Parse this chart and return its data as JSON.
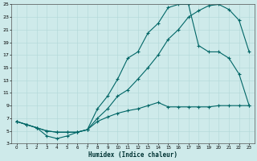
{
  "xlabel": "Humidex (Indice chaleur)",
  "ylabel": "",
  "bg_color": "#ceeaea",
  "line_color": "#006666",
  "grid_color": "#b0d8d8",
  "xlim": [
    -0.5,
    23.5
  ],
  "ylim": [
    3,
    25
  ],
  "xticks": [
    0,
    1,
    2,
    3,
    4,
    5,
    6,
    7,
    8,
    9,
    10,
    11,
    12,
    13,
    14,
    15,
    16,
    17,
    18,
    19,
    20,
    21,
    22,
    23
  ],
  "yticks": [
    3,
    5,
    7,
    9,
    11,
    13,
    15,
    17,
    19,
    21,
    23,
    25
  ],
  "curve1_x": [
    0,
    1,
    2,
    3,
    4,
    5,
    6,
    7,
    8,
    9,
    10,
    11,
    12,
    13,
    14,
    15,
    16,
    17,
    18,
    19,
    20,
    21,
    22,
    23
  ],
  "curve1_y": [
    6.5,
    6.0,
    5.5,
    4.2,
    3.8,
    4.2,
    4.8,
    5.2,
    8.5,
    10.5,
    13.2,
    16.5,
    17.5,
    20.5,
    22.0,
    24.5,
    25.0,
    25.0,
    18.5,
    17.5,
    17.5,
    16.5,
    14.0,
    9.0
  ],
  "curve2_x": [
    0,
    1,
    2,
    3,
    4,
    5,
    6,
    7,
    8,
    9,
    10,
    11,
    12,
    13,
    14,
    15,
    16,
    17,
    18,
    19,
    20,
    21,
    22,
    23
  ],
  "curve2_y": [
    6.5,
    6.0,
    5.5,
    5.0,
    4.8,
    4.8,
    4.8,
    5.2,
    7.0,
    8.5,
    10.5,
    11.5,
    13.2,
    15.0,
    17.0,
    19.5,
    21.0,
    23.0,
    24.0,
    24.8,
    25.0,
    24.2,
    22.5,
    17.5
  ],
  "curve3_x": [
    0,
    1,
    2,
    3,
    4,
    5,
    6,
    7,
    8,
    9,
    10,
    11,
    12,
    13,
    14,
    15,
    16,
    17,
    18,
    19,
    20,
    21,
    22,
    23
  ],
  "curve3_y": [
    6.5,
    6.0,
    5.5,
    5.0,
    4.8,
    4.8,
    4.8,
    5.2,
    6.5,
    7.2,
    7.8,
    8.2,
    8.5,
    9.0,
    9.5,
    8.8,
    8.8,
    8.8,
    8.8,
    8.8,
    9.0,
    9.0,
    9.0,
    9.0
  ]
}
